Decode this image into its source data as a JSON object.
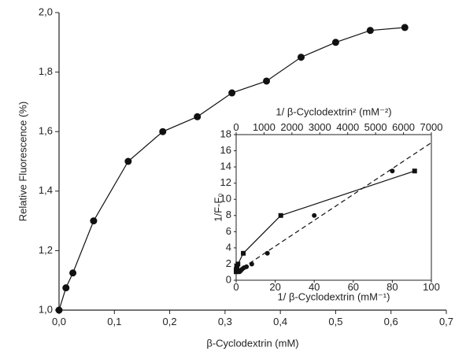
{
  "chart_data": [
    {
      "type": "line",
      "xlabel": "β-Cyclodextrin (mM)",
      "ylabel": "Relative Fluorescence (%)",
      "xlim": [
        0,
        0.7
      ],
      "xticks": [
        {
          "value": 0,
          "label": "0,0"
        },
        {
          "value": 0.1,
          "label": "0,1"
        },
        {
          "value": 0.2,
          "label": "0,2"
        },
        {
          "value": 0.3,
          "label": "0,3"
        },
        {
          "value": 0.4,
          "label": "0,4"
        },
        {
          "value": 0.5,
          "label": "0,5"
        },
        {
          "value": 0.6,
          "label": "0,6"
        },
        {
          "value": 0.7,
          "label": "0,7"
        }
      ],
      "ylim": [
        1.0,
        2.0
      ],
      "yticks": [
        {
          "value": 1.0,
          "label": "1,0"
        },
        {
          "value": 1.2,
          "label": "1,2"
        },
        {
          "value": 1.4,
          "label": "1,4"
        },
        {
          "value": 1.6,
          "label": "1,6"
        },
        {
          "value": 1.8,
          "label": "1,8"
        },
        {
          "value": 2.0,
          "label": "2,0"
        }
      ],
      "series": [
        {
          "color": "#111111",
          "marker": "circle",
          "line": "solid",
          "x": [
            0,
            0.0125,
            0.025,
            0.0625,
            0.125,
            0.1875,
            0.25,
            0.3125,
            0.375,
            0.4375,
            0.5,
            0.5625,
            0.625
          ],
          "values": [
            1.0,
            1.075,
            1.125,
            1.3,
            1.5,
            1.6,
            1.65,
            1.73,
            1.77,
            1.85,
            1.9,
            1.94,
            1.95
          ]
        }
      ]
    },
    {
      "type": "line",
      "xlabel": "1/ β-Cyclodextrin (mM⁻¹)",
      "x2label": "1/ β-Cyclodextrin² (mM⁻²)",
      "ylabel": "1/F-F₀",
      "xlim": [
        0,
        100
      ],
      "xticks": [
        0,
        20,
        40,
        60,
        80,
        100
      ],
      "x2lim": [
        0,
        7000
      ],
      "x2ticks": [
        0,
        1000,
        2000,
        3000,
        4000,
        5000,
        6000,
        7000
      ],
      "ylim": [
        0,
        18
      ],
      "yticks": [
        0,
        2,
        4,
        6,
        8,
        10,
        12,
        14,
        16,
        18
      ],
      "series": [
        {
          "color": "#111111",
          "marker": "square",
          "line": "solid",
          "axis": "x2",
          "x": [
            2.5,
            3.2,
            4,
            5.2,
            7.1,
            9.8,
            16,
            28.4,
            64,
            256,
            1600,
            6400
          ],
          "values": [
            1.05,
            1.06,
            1.11,
            1.18,
            1.3,
            1.37,
            1.54,
            1.67,
            2,
            3.33,
            8,
            13.5
          ]
        },
        {
          "color": "#111111",
          "marker": "circle",
          "line": "none",
          "x": [
            1.6,
            1.8,
            2,
            2.3,
            2.7,
            3.1,
            4,
            5.3,
            8,
            16,
            40,
            80
          ],
          "values": [
            1.05,
            1.06,
            1.11,
            1.18,
            1.3,
            1.37,
            1.54,
            1.67,
            2,
            3.33,
            8,
            13.5
          ]
        },
        {
          "color": "#111111",
          "marker": "none",
          "line": "dashed",
          "x": [
            0,
            100
          ],
          "values": [
            1,
            17
          ]
        }
      ]
    }
  ]
}
